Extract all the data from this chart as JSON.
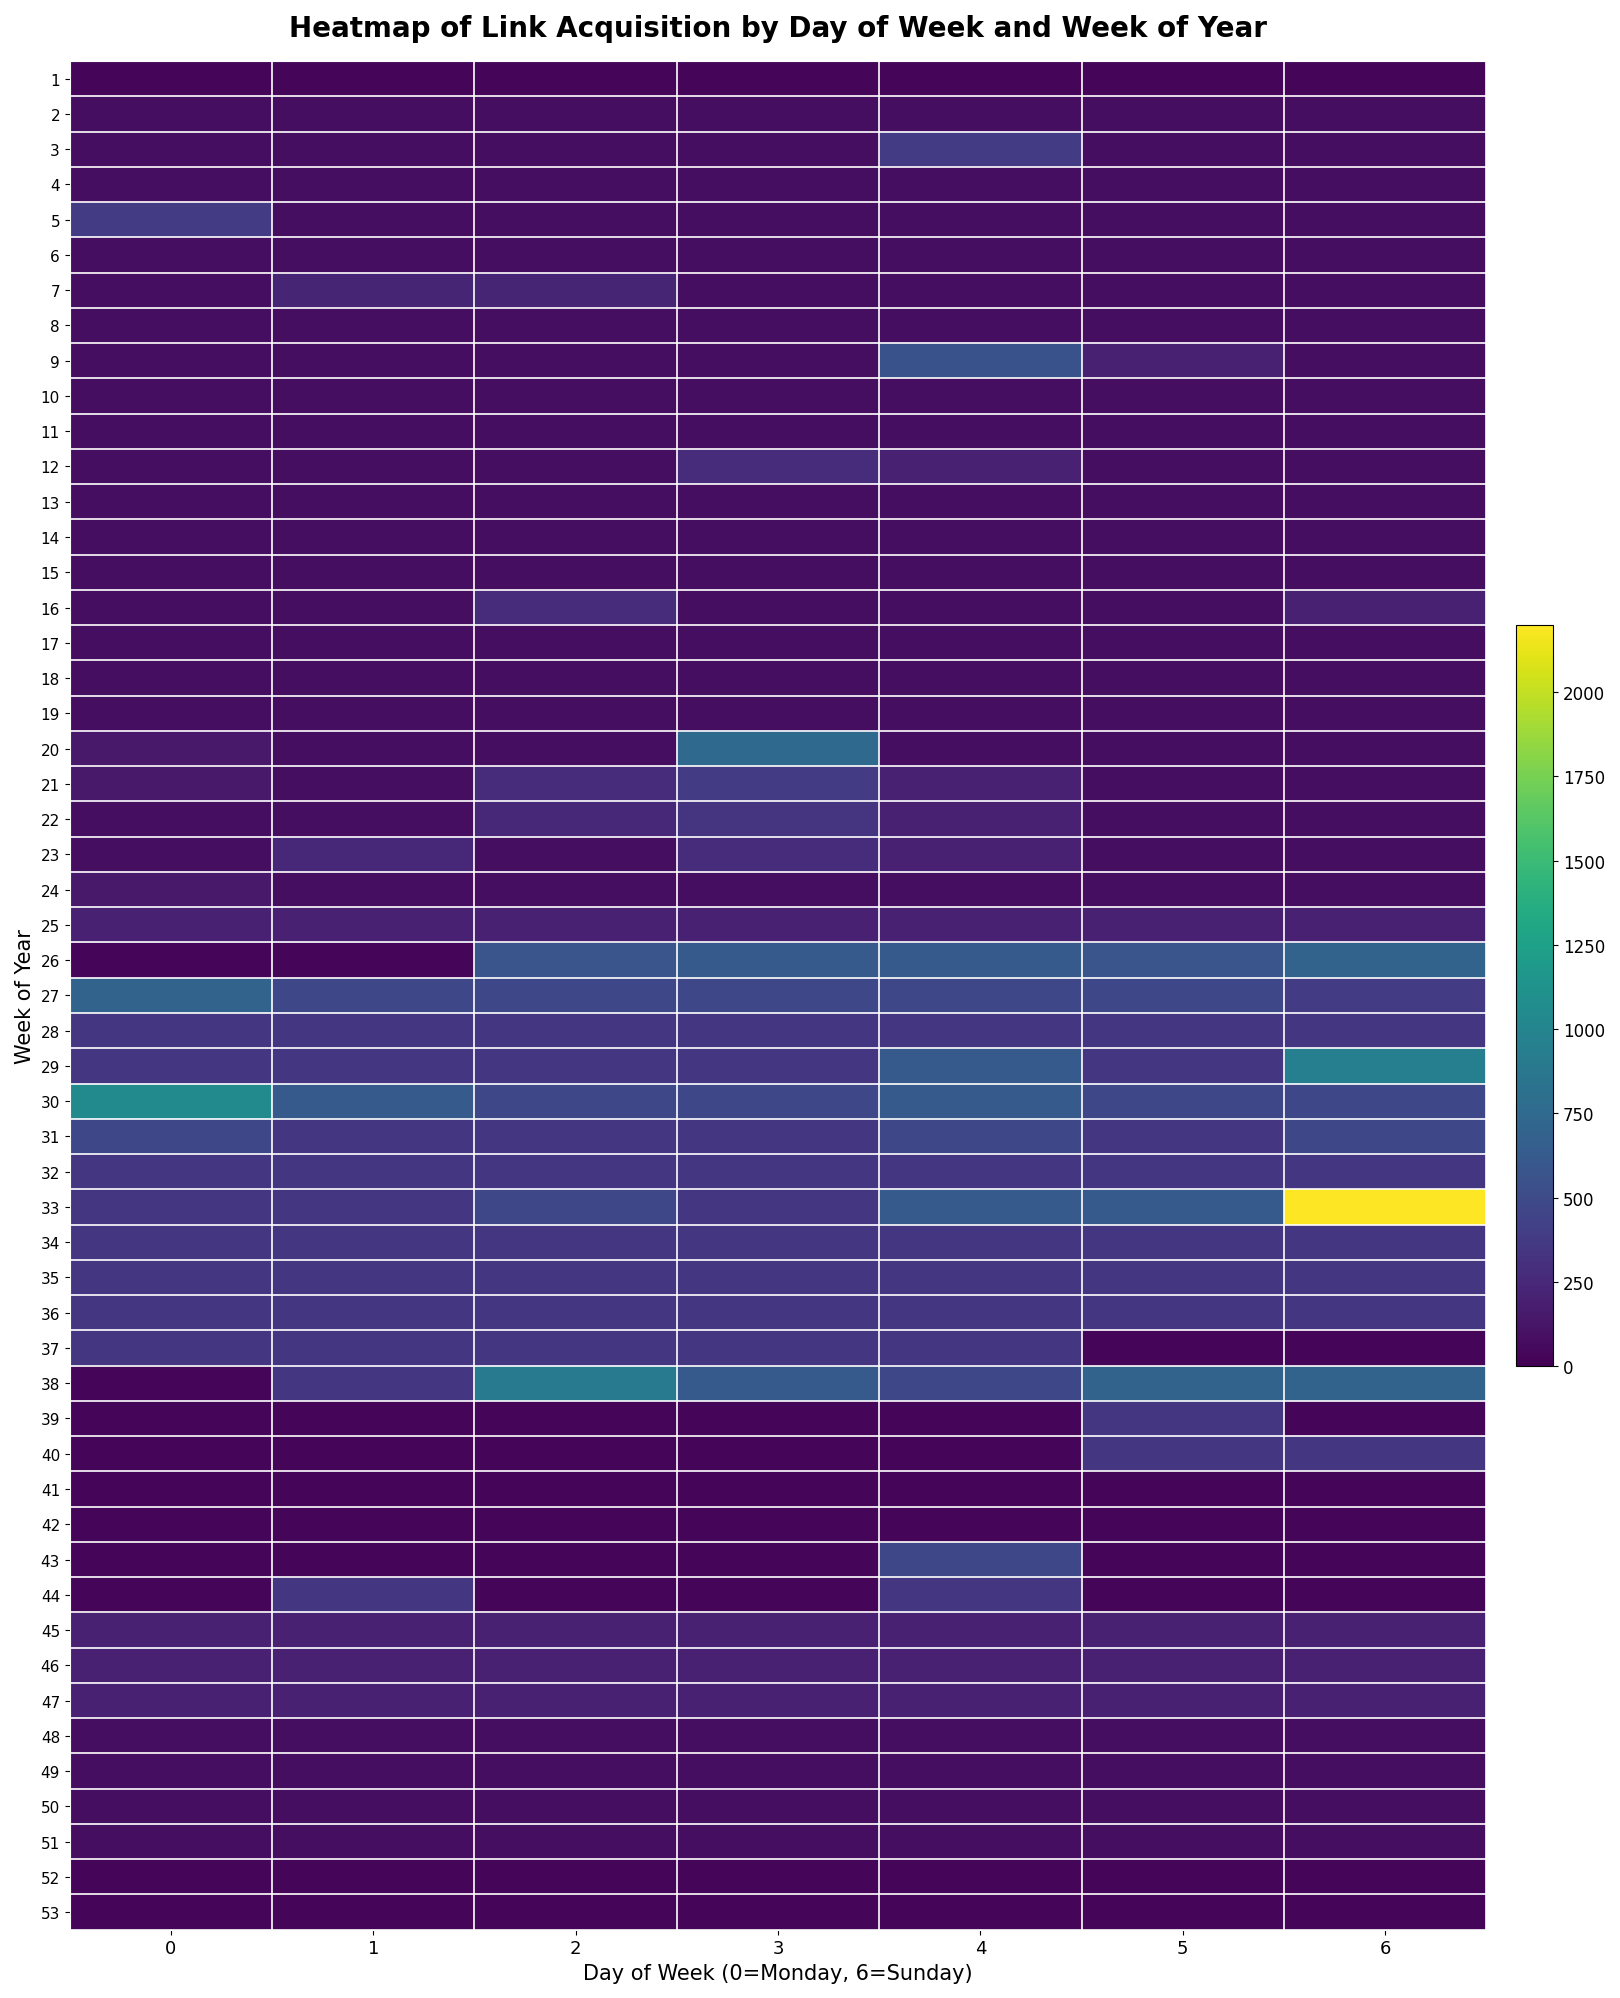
{
  "title": "Heatmap of Link Acquisition by Day of Week and Week of Year",
  "xlabel": "Day of Week (0=Monday, 6=Sunday)",
  "ylabel": "Week of Year",
  "weeks": [
    1,
    2,
    3,
    4,
    5,
    6,
    7,
    8,
    9,
    10,
    11,
    12,
    13,
    14,
    15,
    16,
    17,
    18,
    19,
    20,
    21,
    22,
    23,
    24,
    25,
    26,
    27,
    28,
    29,
    30,
    31,
    32,
    33,
    34,
    35,
    36,
    37,
    38,
    39,
    40,
    41,
    42,
    43,
    44,
    45,
    46,
    47,
    48,
    49,
    50,
    51,
    52,
    53
  ],
  "days": [
    0,
    1,
    2,
    3,
    4,
    5,
    6
  ],
  "colormap": "viridis",
  "vmin": 0,
  "vmax": 2200,
  "data": [
    [
      30,
      30,
      30,
      30,
      30,
      30,
      30
    ],
    [
      80,
      80,
      80,
      80,
      80,
      80,
      80
    ],
    [
      80,
      80,
      80,
      80,
      380,
      80,
      80
    ],
    [
      80,
      80,
      80,
      80,
      80,
      80,
      80
    ],
    [
      380,
      80,
      80,
      80,
      80,
      80,
      80
    ],
    [
      80,
      80,
      80,
      80,
      80,
      80,
      80
    ],
    [
      80,
      230,
      230,
      80,
      80,
      80,
      80
    ],
    [
      80,
      80,
      80,
      80,
      80,
      80,
      80
    ],
    [
      80,
      80,
      80,
      80,
      550,
      200,
      80
    ],
    [
      80,
      80,
      80,
      80,
      80,
      80,
      80
    ],
    [
      80,
      80,
      80,
      80,
      80,
      80,
      80
    ],
    [
      80,
      80,
      80,
      280,
      200,
      80,
      80
    ],
    [
      80,
      80,
      80,
      80,
      80,
      80,
      80
    ],
    [
      80,
      80,
      80,
      80,
      80,
      80,
      80
    ],
    [
      80,
      80,
      80,
      80,
      80,
      80,
      80
    ],
    [
      80,
      80,
      280,
      80,
      80,
      80,
      200
    ],
    [
      80,
      80,
      80,
      80,
      80,
      80,
      80
    ],
    [
      80,
      80,
      80,
      80,
      80,
      80,
      80
    ],
    [
      80,
      80,
      80,
      80,
      80,
      80,
      80
    ],
    [
      150,
      80,
      80,
      750,
      80,
      80,
      80
    ],
    [
      150,
      80,
      280,
      380,
      200,
      80,
      80
    ],
    [
      80,
      80,
      250,
      330,
      200,
      80,
      80
    ],
    [
      80,
      250,
      80,
      280,
      200,
      80,
      80
    ],
    [
      150,
      80,
      80,
      80,
      80,
      80,
      80
    ],
    [
      200,
      200,
      200,
      200,
      200,
      200,
      200
    ],
    [
      30,
      30,
      580,
      620,
      620,
      580,
      700
    ],
    [
      700,
      480,
      480,
      480,
      480,
      480,
      380
    ],
    [
      350,
      350,
      350,
      350,
      350,
      350,
      350
    ],
    [
      350,
      350,
      350,
      350,
      620,
      350,
      950
    ],
    [
      1050,
      620,
      480,
      480,
      620,
      480,
      480
    ],
    [
      480,
      350,
      350,
      350,
      480,
      350,
      480
    ],
    [
      350,
      350,
      350,
      350,
      350,
      350,
      350
    ],
    [
      350,
      350,
      480,
      350,
      620,
      620,
      2200
    ],
    [
      350,
      350,
      350,
      350,
      350,
      350,
      350
    ],
    [
      350,
      350,
      350,
      350,
      350,
      350,
      350
    ],
    [
      350,
      350,
      350,
      350,
      350,
      350,
      350
    ],
    [
      350,
      350,
      350,
      350,
      350,
      30,
      30
    ],
    [
      30,
      350,
      900,
      620,
      480,
      700,
      700
    ],
    [
      30,
      30,
      30,
      30,
      30,
      350,
      30
    ],
    [
      30,
      30,
      30,
      30,
      30,
      350,
      350
    ],
    [
      30,
      30,
      30,
      30,
      30,
      30,
      30
    ],
    [
      30,
      30,
      30,
      30,
      30,
      30,
      30
    ],
    [
      30,
      30,
      30,
      30,
      480,
      30,
      30
    ],
    [
      30,
      350,
      30,
      30,
      350,
      30,
      30
    ],
    [
      200,
      200,
      200,
      200,
      200,
      200,
      200
    ],
    [
      200,
      200,
      200,
      200,
      200,
      200,
      200
    ],
    [
      200,
      200,
      200,
      200,
      200,
      200,
      200
    ],
    [
      80,
      80,
      80,
      80,
      80,
      80,
      80
    ],
    [
      80,
      80,
      80,
      80,
      80,
      80,
      80
    ],
    [
      80,
      80,
      80,
      80,
      80,
      80,
      80
    ],
    [
      80,
      80,
      80,
      80,
      80,
      80,
      80
    ],
    [
      30,
      30,
      30,
      30,
      30,
      30,
      30
    ],
    [
      30,
      30,
      30,
      30,
      30,
      30,
      30
    ]
  ]
}
